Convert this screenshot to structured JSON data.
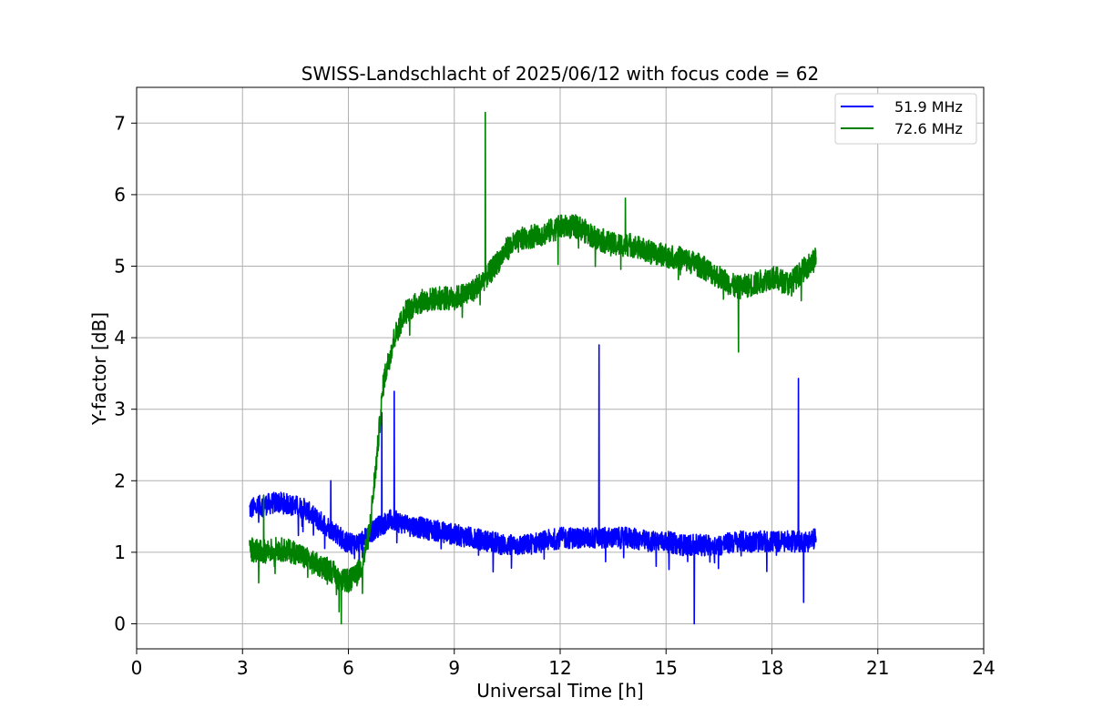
{
  "chart_data": {
    "type": "line",
    "title": "SWISS-Landschlacht of 2025/06/12 with focus code = 62",
    "xlabel": "Universal Time [h]",
    "ylabel": "Y-factor [dB]",
    "xlim": [
      0,
      24
    ],
    "ylim": [
      -0.35,
      7.5
    ],
    "xticks": [
      0,
      3,
      6,
      9,
      12,
      15,
      18,
      21,
      24
    ],
    "yticks": [
      0,
      1,
      2,
      3,
      4,
      5,
      6,
      7
    ],
    "grid": true,
    "legend_position": "top-right",
    "series": [
      {
        "name": "51.9 MHz",
        "color": "#0000ff",
        "noise": 0.25,
        "x": [
          3.2,
          3.5,
          4.0,
          4.5,
          4.8,
          5.0,
          5.3,
          5.6,
          5.9,
          6.2,
          6.5,
          6.8,
          7.2,
          7.6,
          8.0,
          8.5,
          9.0,
          9.5,
          10.0,
          10.5,
          11.0,
          11.5,
          12.0,
          12.5,
          13.0,
          13.5,
          14.0,
          14.5,
          15.0,
          15.5,
          16.0,
          16.5,
          17.0,
          17.5,
          18.0,
          18.5,
          19.0,
          19.25
        ],
        "y": [
          1.6,
          1.65,
          1.7,
          1.65,
          1.6,
          1.5,
          1.4,
          1.3,
          1.15,
          1.1,
          1.2,
          1.35,
          1.45,
          1.4,
          1.35,
          1.3,
          1.25,
          1.2,
          1.15,
          1.1,
          1.1,
          1.15,
          1.2,
          1.2,
          1.2,
          1.2,
          1.2,
          1.15,
          1.15,
          1.1,
          1.1,
          1.1,
          1.15,
          1.15,
          1.15,
          1.15,
          1.15,
          1.2
        ],
        "spikes": [
          [
            5.5,
            2.0
          ],
          [
            6.95,
            2.95
          ],
          [
            7.3,
            3.25
          ],
          [
            13.1,
            3.9
          ],
          [
            18.75,
            3.43
          ],
          [
            15.8,
            0.0
          ],
          [
            18.9,
            0.3
          ]
        ]
      },
      {
        "name": "72.6 MHz",
        "color": "#008000",
        "noise": 0.28,
        "x": [
          3.2,
          3.5,
          4.0,
          4.5,
          5.0,
          5.5,
          5.8,
          6.0,
          6.2,
          6.4,
          6.6,
          6.8,
          7.0,
          7.3,
          7.6,
          8.0,
          8.5,
          9.0,
          9.5,
          10.0,
          10.5,
          11.0,
          11.5,
          12.0,
          12.5,
          13.0,
          13.5,
          14.0,
          14.5,
          15.0,
          15.5,
          16.0,
          16.5,
          17.0,
          17.5,
          18.0,
          18.5,
          19.0,
          19.25
        ],
        "y": [
          1.05,
          1.0,
          1.05,
          1.0,
          0.85,
          0.75,
          0.6,
          0.6,
          0.65,
          0.85,
          1.3,
          2.3,
          3.4,
          4.0,
          4.35,
          4.5,
          4.55,
          4.55,
          4.65,
          4.9,
          5.25,
          5.4,
          5.45,
          5.55,
          5.55,
          5.4,
          5.3,
          5.3,
          5.2,
          5.15,
          5.1,
          5.0,
          4.85,
          4.7,
          4.75,
          4.85,
          4.75,
          5.0,
          5.1
        ],
        "spikes": [
          [
            9.88,
            7.15
          ],
          [
            3.6,
            1.8
          ],
          [
            5.8,
            0.0
          ],
          [
            17.05,
            3.8
          ],
          [
            13.85,
            5.95
          ]
        ]
      }
    ]
  }
}
